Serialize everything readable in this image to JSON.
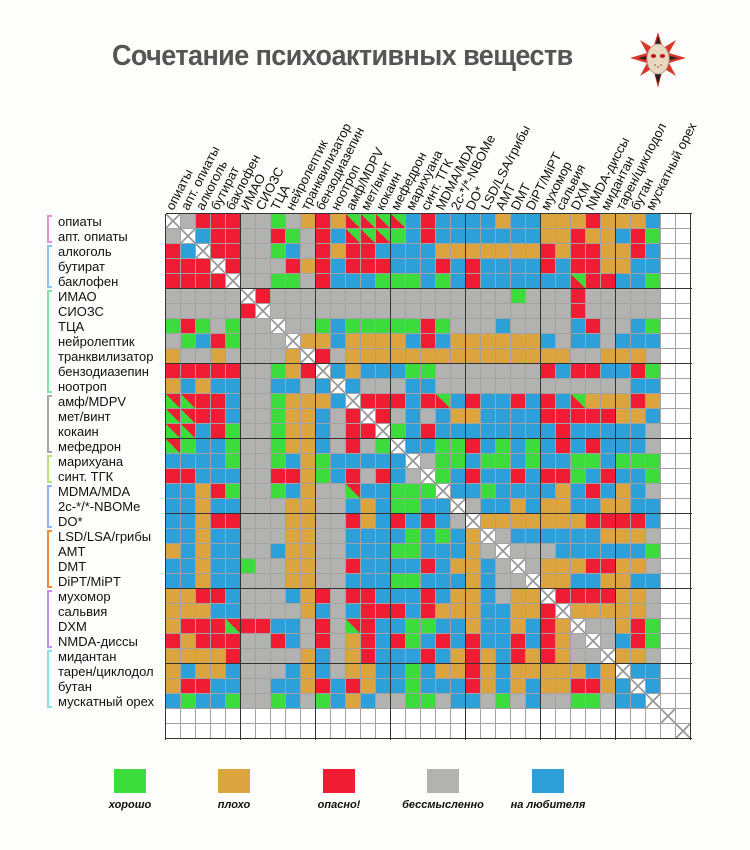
{
  "title": "Сочетание психоактивных веществ",
  "colors": {
    "G": "#3ddc3d",
    "O": "#dba43e",
    "R": "#ef1c33",
    "X": "#b2b2b0",
    "B": "#2d9fd9",
    "W": "#ffffff"
  },
  "legend": [
    {
      "key": "G",
      "label": "хорошо"
    },
    {
      "key": "O",
      "label": "плохо"
    },
    {
      "key": "R",
      "label": "опасно!"
    },
    {
      "key": "X",
      "label": "бессмысленно"
    },
    {
      "key": "B",
      "label": "на любителя"
    }
  ],
  "groups": [
    {
      "from": 0,
      "to": 1,
      "color": "#e58fd6"
    },
    {
      "from": 2,
      "to": 4,
      "color": "#8fc3ee"
    },
    {
      "from": 5,
      "to": 11,
      "color": "#7fe6a0"
    },
    {
      "from": 12,
      "to": 15,
      "color": "#a8a8a8"
    },
    {
      "from": 16,
      "to": 17,
      "color": "#b9e07a"
    },
    {
      "from": 18,
      "to": 20,
      "color": "#8fb3ee"
    },
    {
      "from": 21,
      "to": 24,
      "color": "#ec8a3e"
    },
    {
      "from": 25,
      "to": 28,
      "color": "#c38fe6"
    },
    {
      "from": 29,
      "to": 32,
      "color": "#86e0ea"
    }
  ],
  "chart_data": {
    "type": "heatmap",
    "title": "Сочетание психоактивных веществ",
    "encoding": "G=хорошо, O=плохо, R=опасно!, X=бессмысленно, B=на любителя, D=diagonal (same substance), T=split хорошо/опасно!, W=empty",
    "substances": [
      "опиаты",
      "апт. опиаты",
      "алкоголь",
      "бутират",
      "баклофен",
      "ИМАО",
      "СИОЗС",
      "ТЦА",
      "нейролептик",
      "транквилизатор",
      "бензодиазепин",
      "ноотроп",
      "амф/MDPV",
      "мет/винт",
      "кокаин",
      "мефедрон",
      "марихуана",
      "синт. ТГК",
      "MDMA/MDA",
      "2c-*/*-NBOMe",
      "DO*",
      "LSD/LSA/грибы",
      "AMT",
      "DMT",
      "DiPT/MiPT",
      "мухомор",
      "сальвия",
      "DXM",
      "NMDA-диссы",
      "мидантан",
      "тарен/циклодол",
      "бутан",
      "мускатный орех"
    ],
    "matrix": [
      "DXRRRXXGXOROTTTTBRBBBBOBBOOOROOOBWW",
      "XDBRRXXRGXRBTTTGBRBBBBBBBOOROOBRGWW",
      "RBDRRXXGBXRORRBBBBOOOOOOORORROORBWW",
      "RRRDRXXXRORBRRRBBBRBRBBBBRBRROOBBWW",
      "RRRRDXXGGXRBBBGGGBGBRBBBBBBTRRBBGWW",
      "XXXXXDRXXXXXXXXXXXXXXXXGXXXRXXXXXWW",
      "XXXXXRDXXXXXXXXXXXXXXXXXXXXRXXXXXWW",
      "GRGXGXXDXXGBGGGGGRGXXXBXXXXBRXXBGWW",
      "XGBRGXXXDOOBOOOOBRBOOOOOOBXBBXBBBWW",
      "OXXOXXXXODRXOOOOOOOOOOOOOOOXXOOOXWW",
      "RRRRRXXGORDBOBBBGGXXXXXXXRBRRBBRGWW",
      "OBOBBXXBBXBDBXXXBBXXXXXXXXXXXXXBBWW",
      "TTRRBXXGOOOBDRRRBRTBRBBRBRBTOOOROWW",
      "TTRRBXXGOOBXRDRXBXBOOBBBBRRRRROOBWW",
      "TTBRGXXGOOBXRRDGBRBBBBBBBBRBBBBBXWW",
      "TGBBGXXGOOBXRXGDBBGGRBGBGBRBRBBBXWW",
      "BBBBGXXGBOGBBBBBDXGGBGGBGBBGGBGGGWW",
      "RRBBBXXRROGBRXRBXDGBRBBRBRRGBRBBGWW",
      "BBORGXXGBOXXTBBGGGDBBGBBBBOBRBOBXWW",
      "BBOBBXXXOOXXBOBGGBBDXBBOBOOBBOOBBWW",
      "BBORRXXXOOXXROBRBRBXDOOOOOOORRRRBWW",
      "BBOBBXXXOOXXBBBBGBGBODXBBBBBBOOOXWW",
      "OBOBBXXBOOXXBBBGGBBBOXDXXXBBBBBBGWW",
      "BBOBBGXXOOXXRBBBBRBOOBXDXOOORROOXWW",
      "BBOBBXXXOOXXBBBGGBBBOBXXDOOBBOOBBWW",
      "OORRBXXXBORXRRBBBRBOOBXOODRRRROOXWW",
      "OOOBBXXXXOBXBRRRBROOOBBOORDOOOOOXWW",
      "ORRRTRRBBXRXTRBBGGBBOBBOBRODXXORGWW",
      "RORRRXXRBXRXORBRGBRBRBBRBROXDXBRGWW",
      "OOOORXXXXOBXORBBBRBOROBROROXXDOOXWW",
      "OBOOBXXXBOBXOOBBGBOOROBOOOOOBODBBWW",
      "ORRBBXXBBORBROBBGBBBROBOBOORROBDBWW",
      "BGBBGXXGBXGBOBXXGGXBBXGXBXXGGXBBDWW",
      "WWWWWWWWWWWWWWWWWWWWWWWWWWWWWWWWWDW",
      "WWWWWWWWWWWWWWWWWWWWWWWWWWWWWWWWWWD"
    ]
  }
}
